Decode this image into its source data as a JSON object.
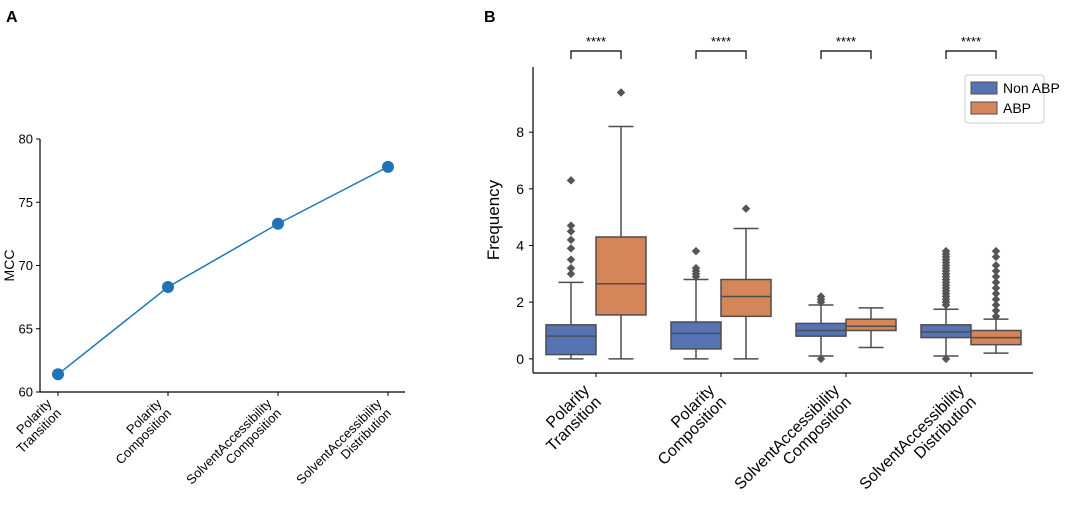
{
  "panel_a_label": "A",
  "panel_b_label": "B",
  "colors": {
    "non_abp": "#5674b3",
    "abp": "#d4865a",
    "line": "#1f77b4",
    "marker": "#2273b5",
    "whisker": "#4d4d4d"
  },
  "chart_data": [
    {
      "type": "line",
      "panel": "A",
      "title": "",
      "xlabel": "",
      "ylabel": "MCC",
      "ylim": [
        60,
        80
      ],
      "yticks": [
        60,
        65,
        70,
        75,
        80
      ],
      "categories": [
        [
          "Polarity",
          "Transition"
        ],
        [
          "Polarity",
          "Composition"
        ],
        [
          "SolventAccessibility",
          "Composition"
        ],
        [
          "SolventAccessibility",
          "Distribution"
        ]
      ],
      "values": [
        61.4,
        68.3,
        73.3,
        77.8
      ]
    },
    {
      "type": "box",
      "panel": "B",
      "title": "",
      "xlabel": "",
      "ylabel": "Frequency",
      "ylim": [
        -0.5,
        10.3
      ],
      "yticks": [
        0,
        2,
        4,
        6,
        8
      ],
      "categories": [
        [
          "Polarity",
          "Transition"
        ],
        [
          "Polarity",
          "Composition"
        ],
        [
          "SolventAccessibility",
          "Composition"
        ],
        [
          "SolventAccessibility",
          "Distribution"
        ]
      ],
      "significance": [
        "****",
        "****",
        "****",
        "****"
      ],
      "legend": {
        "placement": "top-right",
        "entries": [
          "Non ABP",
          "ABP"
        ]
      },
      "series": [
        {
          "name": "Non ABP",
          "boxes": [
            {
              "q1": 0.15,
              "median": 0.8,
              "q3": 1.2,
              "whisker_low": 0.0,
              "whisker_high": 2.7,
              "outliers": [
                3.0,
                3.2,
                3.5,
                3.9,
                4.2,
                4.5,
                4.7,
                6.3
              ]
            },
            {
              "q1": 0.35,
              "median": 0.9,
              "q3": 1.3,
              "whisker_low": 0.0,
              "whisker_high": 2.8,
              "outliers": [
                2.9,
                3.0,
                3.1,
                3.2,
                3.8
              ]
            },
            {
              "q1": 0.8,
              "median": 1.0,
              "q3": 1.25,
              "whisker_low": 0.1,
              "whisker_high": 1.9,
              "outliers": [
                0.0,
                2.0,
                2.1,
                2.2
              ]
            },
            {
              "q1": 0.75,
              "median": 0.95,
              "q3": 1.2,
              "whisker_low": 0.1,
              "whisker_high": 1.75,
              "outliers": [
                0.0,
                1.9,
                2.0,
                2.1,
                2.2,
                2.3,
                2.4,
                2.5,
                2.6,
                2.7,
                2.8,
                2.9,
                3.0,
                3.1,
                3.2,
                3.3,
                3.4,
                3.5,
                3.6,
                3.7,
                3.8
              ]
            }
          ]
        },
        {
          "name": "ABP",
          "boxes": [
            {
              "q1": 1.55,
              "median": 2.65,
              "q3": 4.3,
              "whisker_low": 0.0,
              "whisker_high": 8.2,
              "outliers": [
                9.4
              ]
            },
            {
              "q1": 1.5,
              "median": 2.2,
              "q3": 2.8,
              "whisker_low": 0.0,
              "whisker_high": 4.6,
              "outliers": [
                5.3
              ]
            },
            {
              "q1": 1.0,
              "median": 1.15,
              "q3": 1.4,
              "whisker_low": 0.4,
              "whisker_high": 1.8,
              "outliers": []
            },
            {
              "q1": 0.5,
              "median": 0.75,
              "q3": 1.0,
              "whisker_low": 0.2,
              "whisker_high": 1.4,
              "outliers": [
                1.5,
                1.7,
                1.9,
                2.1,
                2.3,
                2.5,
                2.7,
                2.9,
                3.1,
                3.3,
                3.6,
                3.8
              ]
            }
          ]
        }
      ]
    }
  ]
}
